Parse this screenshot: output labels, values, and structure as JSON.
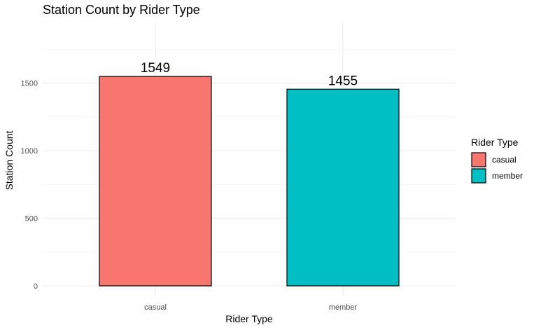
{
  "chart_data": {
    "type": "bar",
    "title": "Station Count by Rider Type",
    "xlabel": "Rider Type",
    "ylabel": "Station Count",
    "categories": [
      "casual",
      "member"
    ],
    "values": [
      1549,
      1455
    ],
    "value_labels": [
      "1549",
      "1455"
    ],
    "colors": [
      "#F8766D",
      "#00BFC4"
    ],
    "ylim": [
      0,
      1890
    ],
    "yticks": [
      0,
      500,
      1000,
      1500
    ],
    "ytick_labels": [
      "0",
      "500",
      "1000",
      "1500"
    ],
    "grid": true,
    "legend": {
      "title": "Rider Type",
      "position": "right",
      "items": [
        {
          "label": "casual",
          "color": "#F8766D"
        },
        {
          "label": "member",
          "color": "#00BFC4"
        }
      ]
    }
  }
}
